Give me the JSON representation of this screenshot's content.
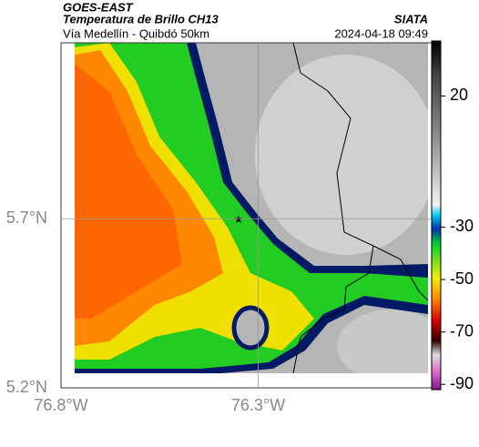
{
  "header": {
    "title": "GOES-EAST",
    "subtitle": "Temperatura de Brillo CH13",
    "route": "Vía Medellín - Quibdó 50km",
    "source": "SIATA",
    "timestamp": "2024-04-18 09:49"
  },
  "map": {
    "xlim": [
      -76.8,
      -75.86
    ],
    "ylim": [
      5.2,
      6.22
    ],
    "xticks": [
      {
        "value": -76.8,
        "label": "76.8°W"
      },
      {
        "value": -76.3,
        "label": "76.3°W"
      }
    ],
    "yticks": [
      {
        "value": 5.2,
        "label": "5.2°N"
      },
      {
        "value": 5.7,
        "label": "5.7°N"
      }
    ],
    "grid": true
  },
  "colorbar": {
    "lim": [
      -92,
      41
    ],
    "ticks": [
      20,
      -30,
      -50,
      -70,
      -90
    ]
  }
}
